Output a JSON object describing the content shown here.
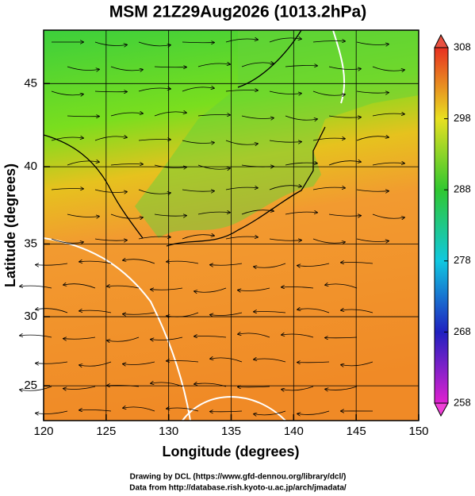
{
  "chart_data": {
    "type": "map",
    "title": "MSM 21Z29Aug2026 (1013.2hPa)",
    "xlabel": "Longitude (degrees)",
    "ylabel": "Latitude  (degrees)",
    "xlim": [
      120,
      150
    ],
    "ylim": [
      22.4,
      48
    ],
    "xticks": [
      120,
      125,
      130,
      135,
      140,
      145,
      150
    ],
    "yticks": [
      25,
      30,
      35,
      40,
      45
    ],
    "grid": true,
    "colorbar": {
      "lim": [
        258,
        308
      ],
      "ticks": [
        258,
        268,
        278,
        288,
        298,
        308
      ]
    }
  },
  "footer": [
    "Drawing by DCL (https://www.gfd-dennou.org/library/dcl/)",
    "Data from http://database.rish.kyoto-u.ac.jp/arch/jmadata/"
  ]
}
